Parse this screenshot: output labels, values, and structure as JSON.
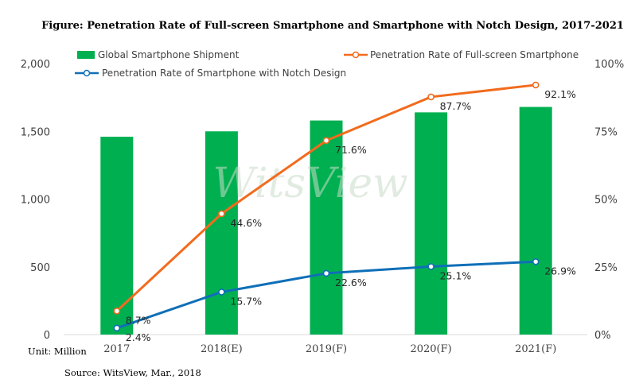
{
  "chart_data": {
    "type": "bar+line",
    "title": "Figure: Penetration Rate of Full-screen Smartphone and Smartphone with Notch Design, 2017-2021",
    "categories": [
      "2017",
      "2018(E)",
      "2019(F)",
      "2020(F)",
      "2021(F)"
    ],
    "y_left": {
      "ticks": [
        "0",
        "500",
        "1,000",
        "1,500",
        "2,000"
      ],
      "range": [
        0,
        2000
      ],
      "unit_note": "Unit: Million"
    },
    "y_right": {
      "ticks": [
        "0%",
        "25%",
        "50%",
        "75%",
        "100%"
      ],
      "range": [
        0,
        100
      ]
    },
    "series": [
      {
        "name": "Global Smartphone Shipment",
        "type": "bar",
        "axis": "left",
        "color": "#00b050",
        "values": [
          1460,
          1500,
          1580,
          1640,
          1680
        ]
      },
      {
        "name": "Penetration Rate of Full-screen Smartphone",
        "type": "line",
        "axis": "right",
        "color": "#f26b1d",
        "values": [
          8.7,
          44.6,
          71.6,
          87.7,
          92.1
        ],
        "labels": [
          "8.7%",
          "44.6%",
          "71.6%",
          "87.7%",
          "92.1%"
        ]
      },
      {
        "name": "Penetration Rate of Smartphone with Notch Design",
        "type": "line",
        "axis": "right",
        "color": "#0f6fb8",
        "values": [
          2.4,
          15.7,
          22.6,
          25.1,
          26.9
        ],
        "labels": [
          "2.4%",
          "15.7%",
          "22.6%",
          "25.1%",
          "26.9%"
        ]
      }
    ],
    "legend_position": "top",
    "grid": false,
    "watermark": "WitsView",
    "source": "Source: WitsView, Mar., 2018"
  }
}
